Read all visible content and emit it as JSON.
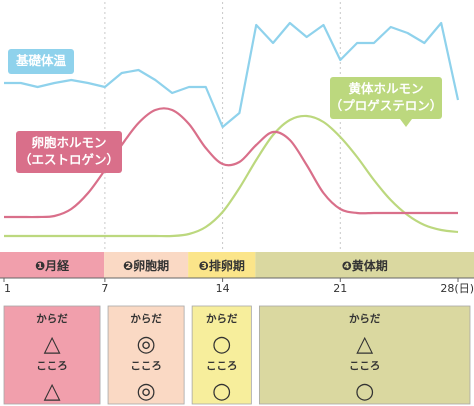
{
  "chart_data": {
    "type": "line",
    "x_ticks": [
      {
        "day": 1,
        "label": "1"
      },
      {
        "day": 7,
        "label": "7"
      },
      {
        "day": 14,
        "label": "14"
      },
      {
        "day": 21,
        "label": "21"
      },
      {
        "day": 28,
        "label": "28(日)"
      }
    ],
    "xlim": [
      1,
      28
    ],
    "grid_days": [
      7,
      14,
      21
    ],
    "series": [
      {
        "key": "bbt",
        "name": "基礎体温",
        "color": "#8fd2ec",
        "points": [
          [
            1,
            83
          ],
          [
            2,
            83
          ],
          [
            3,
            87
          ],
          [
            4,
            83
          ],
          [
            5,
            80
          ],
          [
            6,
            83
          ],
          [
            7,
            87
          ],
          [
            8,
            73
          ],
          [
            9,
            70
          ],
          [
            10,
            80
          ],
          [
            11,
            93
          ],
          [
            12,
            87
          ],
          [
            13,
            87
          ],
          [
            14,
            127
          ],
          [
            15,
            113
          ],
          [
            16,
            25
          ],
          [
            17,
            43
          ],
          [
            18,
            23
          ],
          [
            19,
            37
          ],
          [
            20,
            25
          ],
          [
            21,
            60
          ],
          [
            22,
            43
          ],
          [
            23,
            43
          ],
          [
            24,
            27
          ],
          [
            25,
            33
          ],
          [
            26,
            43
          ],
          [
            27,
            23
          ],
          [
            28,
            100
          ]
        ]
      },
      {
        "key": "estrogen",
        "name": "卵胞ホルモン\n（エストロゲン）",
        "color": "#d96f8a",
        "points": [
          [
            1,
            217
          ],
          [
            2,
            217
          ],
          [
            3,
            217
          ],
          [
            4,
            216
          ],
          [
            5,
            209
          ],
          [
            6,
            193
          ],
          [
            7,
            170
          ],
          [
            8,
            145
          ],
          [
            9,
            123
          ],
          [
            10,
            110
          ],
          [
            11,
            110
          ],
          [
            12,
            124
          ],
          [
            13,
            148
          ],
          [
            14,
            164
          ],
          [
            15,
            162
          ],
          [
            16,
            145
          ],
          [
            17,
            132
          ],
          [
            18,
            140
          ],
          [
            19,
            165
          ],
          [
            20,
            193
          ],
          [
            21,
            209
          ],
          [
            22,
            213
          ],
          [
            23,
            213
          ],
          [
            24,
            213
          ],
          [
            25,
            213
          ],
          [
            26,
            213
          ],
          [
            27,
            213
          ],
          [
            28,
            213
          ]
        ]
      },
      {
        "key": "progesterone",
        "name": "黄体ホルモン\n（プロゲステロン）",
        "color": "#bcd87e",
        "points": [
          [
            1,
            236
          ],
          [
            2,
            236
          ],
          [
            3,
            236
          ],
          [
            4,
            236
          ],
          [
            5,
            236
          ],
          [
            6,
            236
          ],
          [
            7,
            236
          ],
          [
            8,
            236
          ],
          [
            9,
            236
          ],
          [
            10,
            236
          ],
          [
            11,
            236
          ],
          [
            12,
            234
          ],
          [
            13,
            227
          ],
          [
            14,
            212
          ],
          [
            15,
            188
          ],
          [
            16,
            160
          ],
          [
            17,
            135
          ],
          [
            18,
            120
          ],
          [
            19,
            116
          ],
          [
            20,
            122
          ],
          [
            21,
            137
          ],
          [
            22,
            157
          ],
          [
            23,
            180
          ],
          [
            24,
            200
          ],
          [
            25,
            215
          ],
          [
            26,
            225
          ],
          [
            27,
            230
          ],
          [
            28,
            232
          ]
        ]
      }
    ],
    "phases": [
      {
        "label": "❶月経",
        "days": [
          1,
          6
        ],
        "color": "#f19fac",
        "box_color": "#f19fac",
        "body": "△",
        "mind": "△"
      },
      {
        "label": "❷卵胞期",
        "days": [
          7,
          11
        ],
        "color": "#fad9c4",
        "box_color": "#fad9c4",
        "body": "◎",
        "mind": "◎"
      },
      {
        "label": "❸排卵期",
        "days": [
          12,
          15
        ],
        "color": "#fbe58a",
        "box_color": "#f7ee9c",
        "body": "○",
        "mind": "○"
      },
      {
        "label": "❹黄体期",
        "days": [
          16,
          28
        ],
        "color": "#dad8a0",
        "box_color": "#dad8a0",
        "body": "△",
        "mind": "○"
      }
    ],
    "condition_labels": {
      "body": "からだ",
      "mind": "こころ"
    }
  }
}
